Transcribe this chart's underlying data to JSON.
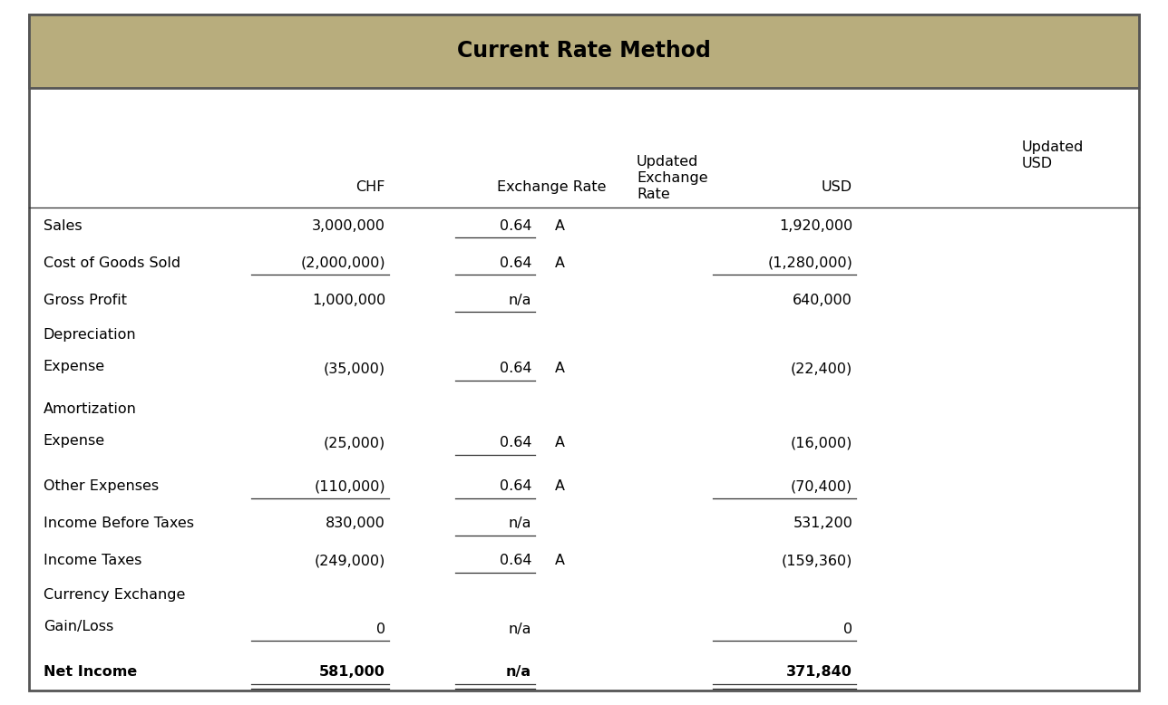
{
  "title": "Current Rate Method",
  "title_bg_color": "#b8ad7d",
  "title_font_color": "#000000",
  "background_color": "#ffffff",
  "outer_border_color": "#555555",
  "text_color": "#000000",
  "font_size": 11.5,
  "header_font_size": 11.5,
  "title_font_size": 17,
  "rows": [
    {
      "label": "Sales",
      "label2": "",
      "chf": "3,000,000",
      "chf_underline": false,
      "rate": "0.64",
      "rate_underline": true,
      "rate_note": "A",
      "usd": "1,920,000",
      "usd_underline": false,
      "bold": false,
      "double_underline": false
    },
    {
      "label": "Cost of Goods Sold",
      "label2": "",
      "chf": "(2,000,000)",
      "chf_underline": true,
      "rate": "0.64",
      "rate_underline": true,
      "rate_note": "A",
      "usd": "(1,280,000)",
      "usd_underline": true,
      "bold": false,
      "double_underline": false
    },
    {
      "label": "Gross Profit",
      "label2": "",
      "chf": "1,000,000",
      "chf_underline": false,
      "rate": "n/a",
      "rate_underline": true,
      "rate_note": "",
      "usd": "640,000",
      "usd_underline": false,
      "bold": false,
      "double_underline": false
    },
    {
      "label": "Depreciation",
      "label2": "Expense",
      "chf": "(35,000)",
      "chf_underline": false,
      "rate": "0.64",
      "rate_underline": true,
      "rate_note": "A",
      "usd": "(22,400)",
      "usd_underline": false,
      "bold": false,
      "double_underline": false
    },
    {
      "label": "Amortization",
      "label2": "Expense",
      "chf": "(25,000)",
      "chf_underline": false,
      "rate": "0.64",
      "rate_underline": true,
      "rate_note": "A",
      "usd": "(16,000)",
      "usd_underline": false,
      "bold": false,
      "double_underline": false
    },
    {
      "label": "Other Expenses",
      "label2": "",
      "chf": "(110,000)",
      "chf_underline": true,
      "rate": "0.64",
      "rate_underline": true,
      "rate_note": "A",
      "usd": "(70,400)",
      "usd_underline": true,
      "bold": false,
      "double_underline": false
    },
    {
      "label": "Income Before Taxes",
      "label2": "",
      "chf": "830,000",
      "chf_underline": false,
      "rate": "n/a",
      "rate_underline": true,
      "rate_note": "",
      "usd": "531,200",
      "usd_underline": false,
      "bold": false,
      "double_underline": false
    },
    {
      "label": "Income Taxes",
      "label2": "",
      "chf": "(249,000)",
      "chf_underline": false,
      "rate": "0.64",
      "rate_underline": true,
      "rate_note": "A",
      "usd": "(159,360)",
      "usd_underline": false,
      "bold": false,
      "double_underline": false
    },
    {
      "label": "Currency Exchange",
      "label2": "Gain/Loss",
      "chf": "0",
      "chf_underline": true,
      "rate": "n/a",
      "rate_underline": false,
      "rate_note": "",
      "usd": "0",
      "usd_underline": true,
      "bold": false,
      "double_underline": false
    },
    {
      "label": "Net Income",
      "label2": "",
      "chf": "581,000",
      "chf_underline": false,
      "rate": "n/a",
      "rate_underline": false,
      "rate_note": "",
      "usd": "371,840",
      "usd_underline": false,
      "bold": true,
      "double_underline": true
    }
  ]
}
